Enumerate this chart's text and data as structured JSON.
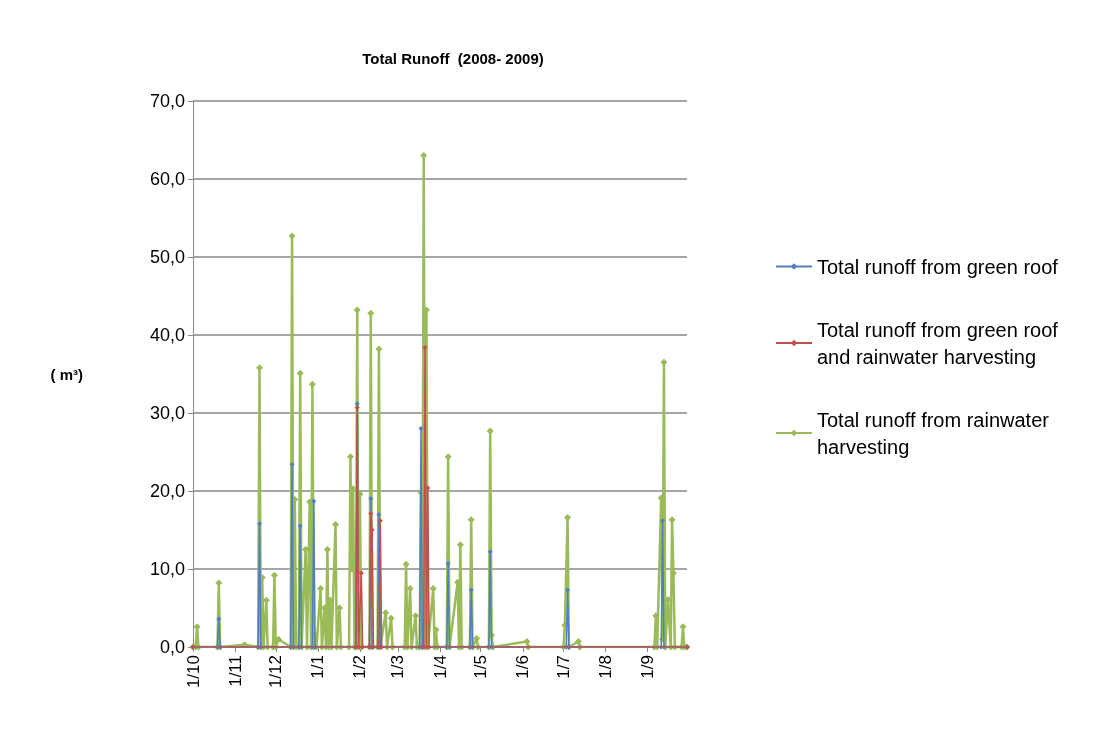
{
  "chart_data": {
    "type": "line",
    "title": "Total Runoff  (2008- 2009)",
    "ylabel": "( m³)",
    "xlim": [
      "2008-10-01",
      "2009-09-30"
    ],
    "xticks": [
      {
        "value": "2008-10-01",
        "label": "1/10"
      },
      {
        "value": "2008-11-01",
        "label": "1/11"
      },
      {
        "value": "2008-12-01",
        "label": "1/12"
      },
      {
        "value": "2009-01-01",
        "label": "1/1"
      },
      {
        "value": "2009-02-01",
        "label": "1/2"
      },
      {
        "value": "2009-03-01",
        "label": "1/3"
      },
      {
        "value": "2009-04-01",
        "label": "1/4"
      },
      {
        "value": "2009-05-01",
        "label": "1/5"
      },
      {
        "value": "2009-06-01",
        "label": "1/6"
      },
      {
        "value": "2009-07-01",
        "label": "1/7"
      },
      {
        "value": "2009-08-01",
        "label": "1/8"
      },
      {
        "value": "2009-09-01",
        "label": "1/9"
      }
    ],
    "ylim": [
      0,
      70
    ],
    "yticks": [
      {
        "value": 0,
        "label": "0,0"
      },
      {
        "value": 10,
        "label": "10,0"
      },
      {
        "value": 20,
        "label": "20,0"
      },
      {
        "value": 30,
        "label": "30,0"
      },
      {
        "value": 40,
        "label": "40,0"
      },
      {
        "value": 50,
        "label": "50,0"
      },
      {
        "value": 60,
        "label": "60,0"
      },
      {
        "value": 70,
        "label": "70,0"
      }
    ],
    "grid": "y",
    "legend": "right",
    "marker": "diamond",
    "line_style": "solid",
    "series": [
      {
        "name": "Total runoff from green roof",
        "color": "#4f81bd",
        "x": [
          "2008-10-01",
          "2008-10-19",
          "2008-10-20",
          "2008-10-21",
          "2008-11-18",
          "2008-11-19",
          "2008-11-20",
          "2008-12-12",
          "2008-12-13",
          "2008-12-14",
          "2008-12-18",
          "2008-12-19",
          "2008-12-20",
          "2008-12-28",
          "2008-12-29",
          "2008-12-30",
          "2009-01-29",
          "2009-01-30",
          "2009-01-31",
          "2009-02-08",
          "2009-02-09",
          "2009-02-10",
          "2009-02-14",
          "2009-02-15",
          "2009-02-16",
          "2009-03-17",
          "2009-03-18",
          "2009-03-19",
          "2009-04-06",
          "2009-04-07",
          "2009-04-08",
          "2009-04-23",
          "2009-04-24",
          "2009-04-25",
          "2009-05-07",
          "2009-05-08",
          "2009-05-09",
          "2009-07-03",
          "2009-07-04",
          "2009-07-05",
          "2009-09-11",
          "2009-09-12",
          "2009-09-13",
          "2009-09-30"
        ],
        "values": [
          0,
          0,
          3.6,
          0,
          0,
          15.8,
          0,
          0,
          23.4,
          0,
          0,
          15.5,
          0,
          0,
          18.7,
          0,
          0,
          31.2,
          0,
          0,
          19.0,
          0,
          0,
          17.0,
          0,
          0,
          28.0,
          0,
          0,
          10.7,
          0,
          0,
          7.3,
          0,
          0,
          12.2,
          0,
          0,
          7.3,
          0,
          0,
          16.2,
          0,
          0
        ]
      },
      {
        "name": "Total runoff from green roof and rainwater harvesting",
        "color": "#c0504d",
        "x": [
          "2008-10-01",
          "2009-01-29",
          "2009-01-30",
          "2009-01-31",
          "2009-02-02",
          "2009-02-03",
          "2009-02-08",
          "2009-02-09",
          "2009-02-10",
          "2009-02-11",
          "2009-02-15",
          "2009-02-16",
          "2009-02-17",
          "2009-03-20",
          "2009-03-21",
          "2009-03-22",
          "2009-03-23",
          "2009-03-24",
          "2009-09-30"
        ],
        "values": [
          0,
          0,
          30.7,
          0,
          9.5,
          0,
          0,
          17.1,
          15.0,
          0,
          0,
          16.2,
          0,
          0,
          38.4,
          0,
          20.4,
          0,
          0
        ]
      },
      {
        "name": "Total runoff from rainwater harvesting",
        "color": "#9bbb59",
        "x": [
          "2008-10-01",
          "2008-10-03",
          "2008-10-04",
          "2008-10-05",
          "2008-10-19",
          "2008-10-20",
          "2008-10-21",
          "2008-11-08",
          "2008-11-18",
          "2008-11-19",
          "2008-11-20",
          "2008-11-21",
          "2008-11-22",
          "2008-11-24",
          "2008-11-25",
          "2008-11-29",
          "2008-11-30",
          "2008-12-01",
          "2008-12-03",
          "2008-12-12",
          "2008-12-13",
          "2008-12-14",
          "2008-12-15",
          "2008-12-16",
          "2008-12-18",
          "2008-12-19",
          "2008-12-20",
          "2008-12-23",
          "2008-12-24",
          "2008-12-26",
          "2008-12-27",
          "2008-12-28",
          "2008-12-29",
          "2008-12-30",
          "2008-12-31",
          "2009-01-03",
          "2009-01-04",
          "2009-01-06",
          "2009-01-07",
          "2009-01-08",
          "2009-01-09",
          "2009-01-10",
          "2009-01-11",
          "2009-01-14",
          "2009-01-15",
          "2009-01-17",
          "2009-01-18",
          "2009-01-24",
          "2009-01-25",
          "2009-01-26",
          "2009-01-27",
          "2009-01-28",
          "2009-01-29",
          "2009-01-30",
          "2009-01-31",
          "2009-02-01",
          "2009-02-02",
          "2009-02-08",
          "2009-02-09",
          "2009-02-10",
          "2009-02-14",
          "2009-02-15",
          "2009-02-16",
          "2009-02-20",
          "2009-02-21",
          "2009-02-24",
          "2009-02-25",
          "2009-03-06",
          "2009-03-07",
          "2009-03-08",
          "2009-03-10",
          "2009-03-11",
          "2009-03-14",
          "2009-03-15",
          "2009-03-17",
          "2009-03-18",
          "2009-03-19",
          "2009-03-20",
          "2009-03-21",
          "2009-03-22",
          "2009-03-23",
          "2009-03-27",
          "2009-03-28",
          "2009-03-29",
          "2009-03-30",
          "2009-04-06",
          "2009-04-07",
          "2009-04-08",
          "2009-04-14",
          "2009-04-15",
          "2009-04-16",
          "2009-04-17",
          "2009-04-23",
          "2009-04-24",
          "2009-04-25",
          "2009-04-28",
          "2009-04-29",
          "2009-05-07",
          "2009-05-08",
          "2009-05-09",
          "2009-05-10",
          "2009-06-04",
          "2009-06-05",
          "2009-07-01",
          "2009-07-02",
          "2009-07-04",
          "2009-07-05",
          "2009-07-12",
          "2009-07-13",
          "2009-09-06",
          "2009-09-07",
          "2009-09-08",
          "2009-09-11",
          "2009-09-12",
          "2009-09-13",
          "2009-09-14",
          "2009-09-16",
          "2009-09-18",
          "2009-09-19",
          "2009-09-20",
          "2009-09-21",
          "2009-09-26",
          "2009-09-27",
          "2009-09-28",
          "2009-09-30"
        ],
        "values": [
          0,
          0,
          2.6,
          0,
          0,
          8.2,
          0,
          0.3,
          0,
          35.8,
          0,
          8.9,
          0,
          6.0,
          0,
          0,
          9.2,
          0,
          1.0,
          0,
          52.7,
          0,
          18.9,
          0,
          0,
          35.1,
          0,
          12.5,
          0,
          18.6,
          0,
          33.7,
          0,
          1.5,
          0,
          7.5,
          0,
          5.0,
          0,
          12.5,
          0,
          6.0,
          0,
          15.7,
          0,
          5.0,
          0,
          0,
          24.4,
          10.0,
          20.3,
          0,
          0,
          43.2,
          0,
          19.6,
          0,
          0,
          42.8,
          0,
          0,
          38.2,
          0,
          4.4,
          0,
          3.7,
          0,
          0,
          10.6,
          0,
          7.5,
          0,
          4.0,
          0,
          0,
          19.8,
          0,
          63.0,
          0,
          43.2,
          0,
          7.5,
          0,
          2.2,
          0,
          0,
          24.4,
          0,
          8.3,
          0,
          13.1,
          0,
          0,
          16.3,
          0,
          1.1,
          0,
          0,
          27.7,
          1.5,
          0,
          0.7,
          0,
          0,
          2.8,
          16.6,
          0,
          0.7,
          0,
          0,
          4.0,
          0,
          19.1,
          1.0,
          36.5,
          0,
          6.1,
          0,
          16.3,
          9.5,
          0,
          0,
          2.6,
          0,
          0
        ]
      }
    ]
  }
}
